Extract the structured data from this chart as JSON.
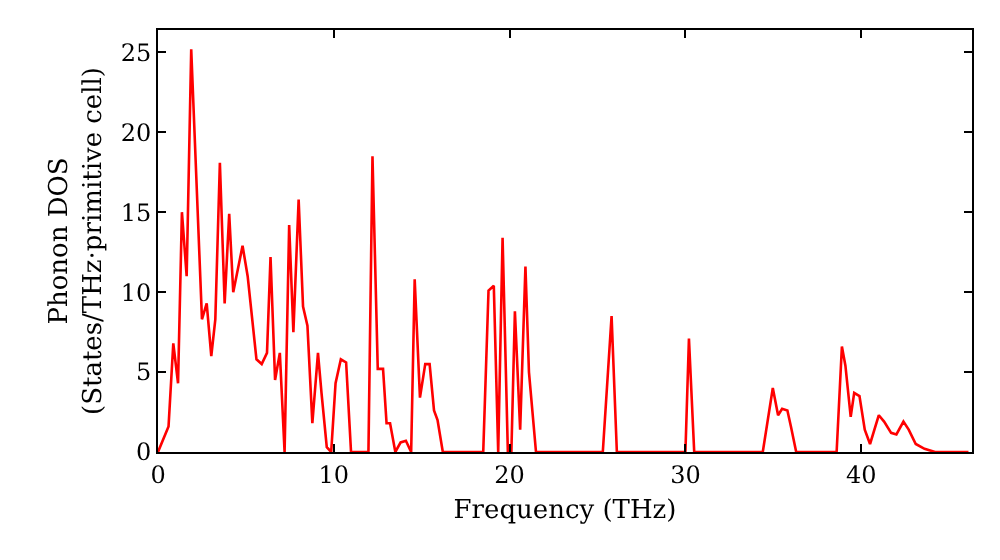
{
  "chart_data": {
    "type": "line",
    "xlabel": "Frequency (THz)",
    "ylabel": "Phonon DOS\n(States/THz·primitive cell)",
    "xlim": [
      0,
      46.3
    ],
    "ylim": [
      0,
      26.4
    ],
    "xticks": [
      0,
      10,
      20,
      30,
      40
    ],
    "yticks": [
      0,
      5,
      10,
      15,
      20,
      25
    ],
    "marker": "none",
    "line_style": "solid",
    "series": [
      {
        "color": "#ff0000",
        "x": [
          0,
          0.6,
          0.87,
          1.14,
          1.36,
          1.63,
          1.89,
          2.5,
          2.77,
          3.03,
          3.26,
          3.52,
          3.79,
          4.05,
          4.28,
          4.81,
          5.1,
          5.6,
          5.9,
          6.2,
          6.4,
          6.66,
          6.93,
          7.2,
          7.46,
          7.7,
          8.0,
          8.25,
          8.5,
          8.78,
          9.1,
          9.3,
          9.6,
          9.85,
          10.1,
          10.4,
          10.7,
          10.98,
          11.97,
          12.2,
          12.5,
          12.8,
          13.0,
          13.2,
          13.5,
          13.8,
          14.1,
          14.4,
          14.6,
          14.9,
          15.2,
          15.45,
          15.7,
          15.9,
          16.2,
          18.5,
          18.8,
          19.1,
          19.35,
          19.6,
          19.9,
          20.1,
          20.3,
          20.6,
          20.9,
          21.1,
          21.5,
          25.3,
          25.8,
          26.1,
          30.0,
          30.2,
          30.5,
          34.4,
          34.97,
          35.27,
          35.5,
          35.8,
          36.0,
          36.3,
          38.6,
          38.9,
          39.1,
          39.4,
          39.6,
          39.9,
          40.2,
          40.5,
          41.0,
          41.3,
          41.7,
          42.0,
          42.4,
          42.7,
          43.1,
          43.6,
          44.2,
          46.1
        ],
        "values": [
          0,
          1.6,
          6.8,
          4.3,
          15.0,
          11.0,
          25.2,
          8.3,
          9.3,
          6.0,
          8.3,
          18.1,
          9.3,
          14.9,
          10.0,
          12.9,
          11.0,
          5.8,
          5.5,
          6.2,
          12.2,
          4.5,
          6.2,
          0,
          14.2,
          7.5,
          15.8,
          9.1,
          7.9,
          1.8,
          6.2,
          3.7,
          0.3,
          0,
          4.3,
          5.8,
          5.6,
          0,
          0,
          18.5,
          5.2,
          5.2,
          1.8,
          1.8,
          0,
          0.6,
          0.7,
          0,
          10.8,
          3.4,
          5.5,
          5.5,
          2.6,
          2.0,
          0,
          0,
          10.1,
          10.4,
          0,
          13.4,
          0,
          0,
          8.8,
          1.4,
          11.6,
          5.0,
          0,
          0,
          8.5,
          0,
          0,
          7.1,
          0,
          0,
          4.0,
          2.3,
          2.7,
          2.6,
          1.6,
          0,
          0,
          6.6,
          5.4,
          2.2,
          3.7,
          3.5,
          1.4,
          0.5,
          2.3,
          1.9,
          1.2,
          1.1,
          1.9,
          1.4,
          0.5,
          0.2,
          0,
          0
        ]
      }
    ]
  }
}
